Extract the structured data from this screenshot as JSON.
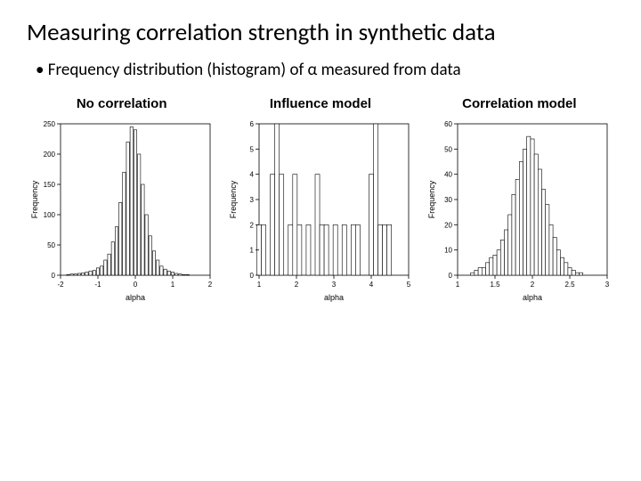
{
  "title": "Measuring correlation strength in synthetic data",
  "bullet1": "Frequency distribution (histogram) of α measured from data",
  "charts": {
    "chart1": {
      "title": "No correlation",
      "type": "histogram",
      "xlabel": "alpha",
      "ylabel": "Frequency",
      "xlim": [
        -2,
        2
      ],
      "xticks": [
        -2,
        -1,
        0,
        1,
        2
      ],
      "ylim": [
        0,
        250
      ],
      "yticks": [
        0,
        50,
        100,
        150,
        200,
        250
      ],
      "bin_width": 0.08,
      "bins_x": [
        -1.8,
        -1.7,
        -1.6,
        -1.5,
        -1.4,
        -1.3,
        -1.2,
        -1.1,
        -1.0,
        -0.9,
        -0.8,
        -0.7,
        -0.6,
        -0.5,
        -0.4,
        -0.3,
        -0.2,
        -0.1,
        0.0,
        0.1,
        0.2,
        0.3,
        0.4,
        0.5,
        0.6,
        0.7,
        0.8,
        0.9,
        1.0,
        1.1,
        1.2,
        1.3,
        1.4
      ],
      "bins_h": [
        1,
        2,
        2,
        3,
        4,
        5,
        7,
        8,
        12,
        15,
        25,
        35,
        55,
        80,
        120,
        170,
        220,
        245,
        240,
        200,
        150,
        100,
        65,
        40,
        25,
        15,
        10,
        7,
        5,
        3,
        2,
        1,
        1
      ],
      "bar_fill": "#ffffff",
      "bar_stroke": "#000000",
      "axis_color": "#000000",
      "font_size_axis": 8,
      "font_size_label": 9
    },
    "chart2": {
      "title": "Influence model",
      "type": "histogram",
      "xlabel": "alpha",
      "ylabel": "Frequency",
      "xlim": [
        1,
        5
      ],
      "xticks": [
        1,
        2,
        3,
        4,
        5
      ],
      "ylim": [
        0,
        6
      ],
      "yticks": [
        0,
        1,
        2,
        3,
        4,
        5,
        6
      ],
      "bin_width": 0.12,
      "bins_x": [
        1.0,
        1.12,
        1.24,
        1.36,
        1.48,
        1.6,
        1.72,
        1.84,
        1.96,
        2.08,
        2.2,
        2.32,
        2.44,
        2.56,
        2.68,
        2.8,
        2.92,
        3.04,
        3.16,
        3.28,
        3.4,
        3.52,
        3.64,
        3.76,
        3.88,
        4.0,
        4.12,
        4.24,
        4.36,
        4.48
      ],
      "bins_h": [
        2,
        2,
        0,
        4,
        6,
        4,
        0,
        2,
        4,
        2,
        0,
        2,
        0,
        4,
        2,
        2,
        0,
        2,
        0,
        2,
        0,
        2,
        2,
        0,
        0,
        4,
        6,
        2,
        2,
        2
      ],
      "bar_fill": "#ffffff",
      "bar_stroke": "#000000",
      "axis_color": "#000000",
      "font_size_axis": 8,
      "font_size_label": 9
    },
    "chart3": {
      "title": "Correlation model",
      "type": "histogram",
      "xlabel": "alpha",
      "ylabel": "Frequency",
      "xlim": [
        1.0,
        3.0
      ],
      "xticks": [
        1.0,
        1.5,
        2.0,
        2.5,
        3.0
      ],
      "ylim": [
        0,
        60
      ],
      "yticks": [
        0,
        10,
        20,
        30,
        40,
        50,
        60
      ],
      "bin_width": 0.05,
      "bins_x": [
        1.2,
        1.25,
        1.3,
        1.35,
        1.4,
        1.45,
        1.5,
        1.55,
        1.6,
        1.65,
        1.7,
        1.75,
        1.8,
        1.85,
        1.9,
        1.95,
        2.0,
        2.05,
        2.1,
        2.15,
        2.2,
        2.25,
        2.3,
        2.35,
        2.4,
        2.45,
        2.5,
        2.55,
        2.6,
        2.65,
        2.7
      ],
      "bins_h": [
        1,
        2,
        3,
        3,
        5,
        7,
        8,
        10,
        14,
        18,
        24,
        32,
        38,
        45,
        50,
        55,
        54,
        48,
        42,
        34,
        28,
        20,
        15,
        10,
        7,
        5,
        3,
        2,
        1,
        1,
        0
      ],
      "bar_fill": "#ffffff",
      "bar_stroke": "#000000",
      "axis_color": "#000000",
      "font_size_axis": 8,
      "font_size_label": 9
    }
  }
}
